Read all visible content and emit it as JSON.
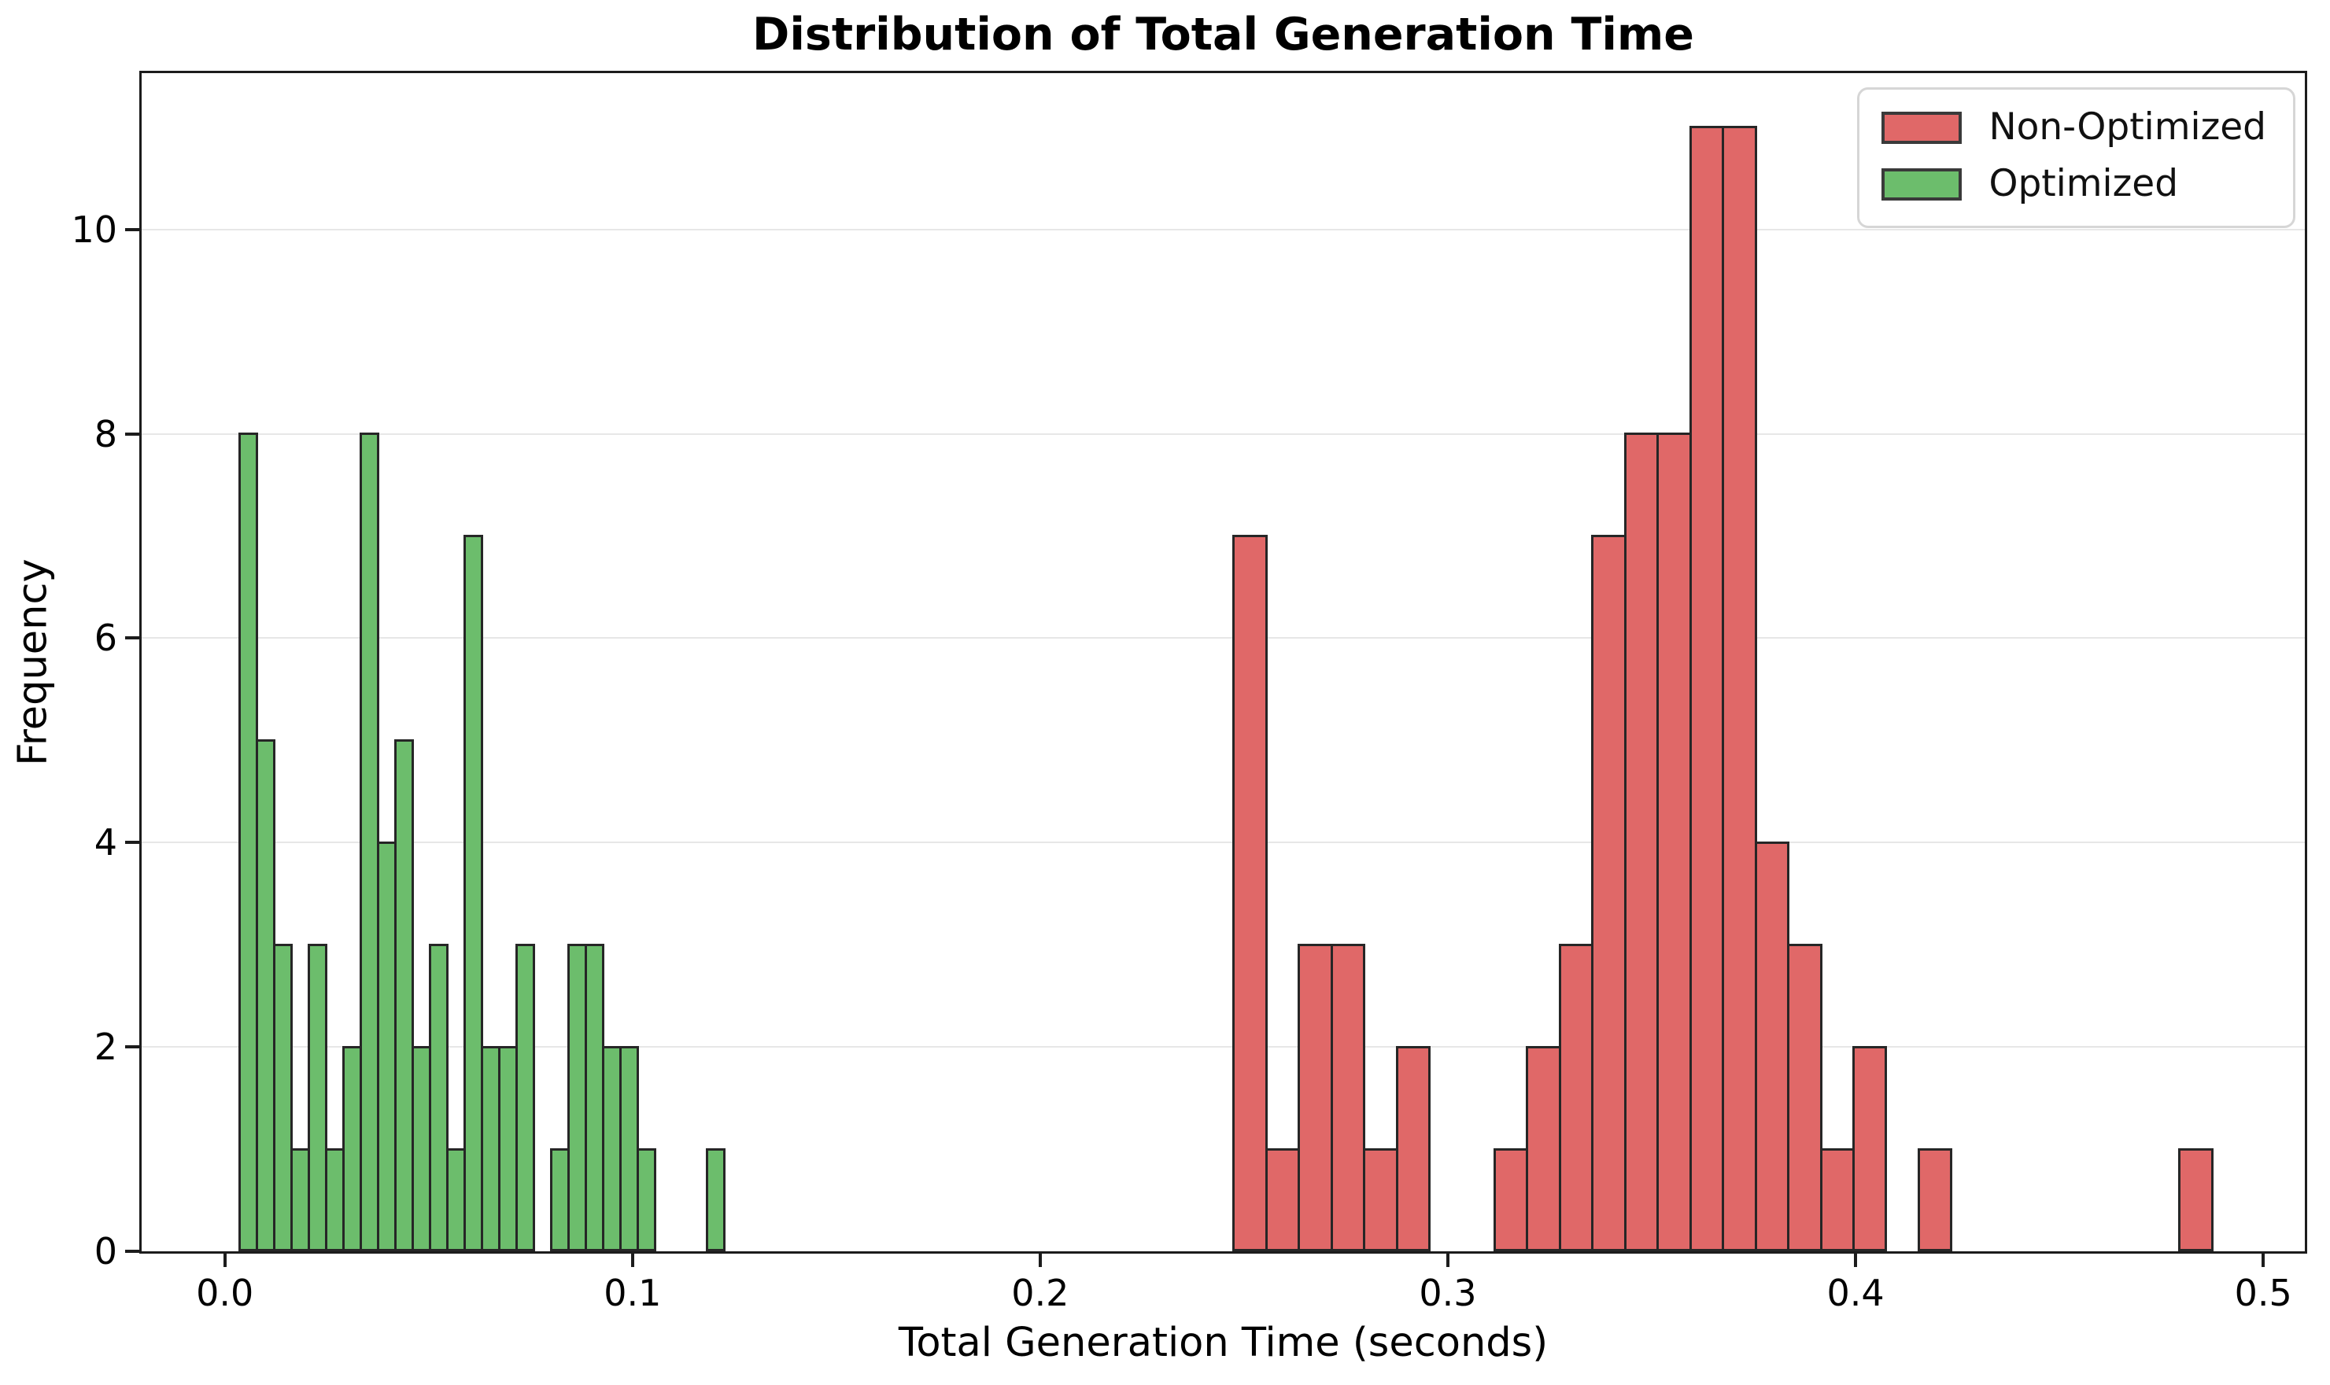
{
  "chart_data": {
    "type": "bar",
    "subtype": "histogram",
    "title": "Distribution of Total Generation Time",
    "xlabel": "Total Generation Time (seconds)",
    "ylabel": "Frequency",
    "xticks": [
      0.0,
      0.1,
      0.2,
      0.3,
      0.4,
      0.5
    ],
    "xtick_labels": [
      "0.0",
      "0.1",
      "0.2",
      "0.3",
      "0.4",
      "0.5"
    ],
    "yticks": [
      0,
      2,
      4,
      6,
      8,
      10
    ],
    "ytick_labels": [
      "0",
      "2",
      "4",
      "6",
      "8",
      "10"
    ],
    "xlim": [
      -0.0204,
      0.5102
    ],
    "ylim": [
      0,
      11.53
    ],
    "grid": "horizontal-only",
    "gridline_color": "#e7e7e7",
    "background_color": "#ffffff",
    "bar_edge_color": "#262626",
    "legend_position": "upper right",
    "series": [
      {
        "name": "Non-Optimized",
        "color": "#e06868",
        "bin_start": 0.2475,
        "bin_width": 0.008,
        "counts": [
          7,
          1,
          3,
          3,
          1,
          2,
          0,
          0,
          1,
          2,
          3,
          7,
          8,
          8,
          11,
          11,
          4,
          3,
          1,
          2,
          0,
          1,
          0,
          0,
          0,
          0,
          0,
          0,
          0,
          1
        ]
      },
      {
        "name": "Optimized",
        "color": "#6cbd6c",
        "bin_start": 0.0036,
        "bin_width": 0.00425,
        "counts": [
          8,
          5,
          3,
          1,
          3,
          1,
          2,
          8,
          4,
          5,
          2,
          3,
          1,
          7,
          2,
          2,
          3,
          0,
          1,
          3,
          3,
          2,
          2,
          1,
          0,
          0,
          0,
          1
        ]
      }
    ]
  }
}
